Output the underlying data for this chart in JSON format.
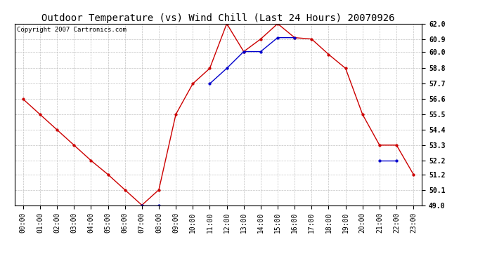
{
  "title": "Outdoor Temperature (vs) Wind Chill (Last 24 Hours) 20070926",
  "copyright": "Copyright 2007 Cartronics.com",
  "hours": [
    "00:00",
    "01:00",
    "02:00",
    "03:00",
    "04:00",
    "05:00",
    "06:00",
    "07:00",
    "08:00",
    "09:00",
    "10:00",
    "11:00",
    "12:00",
    "13:00",
    "14:00",
    "15:00",
    "16:00",
    "17:00",
    "18:00",
    "19:00",
    "20:00",
    "21:00",
    "22:00",
    "23:00"
  ],
  "outdoor_temp": [
    56.6,
    55.5,
    54.4,
    53.3,
    52.2,
    51.2,
    50.1,
    49.0,
    50.1,
    55.5,
    57.7,
    58.8,
    62.0,
    60.0,
    60.9,
    62.0,
    61.0,
    60.9,
    59.8,
    58.8,
    55.5,
    53.3,
    53.3,
    51.2
  ],
  "wind_chill": [
    null,
    null,
    null,
    null,
    null,
    null,
    null,
    49.0,
    49.0,
    null,
    null,
    57.7,
    58.8,
    60.0,
    60.0,
    61.0,
    61.0,
    null,
    null,
    null,
    null,
    52.2,
    52.2,
    null
  ],
  "temp_color": "#cc0000",
  "wind_color": "#0000cc",
  "bg_color": "#ffffff",
  "grid_color": "#bbbbbb",
  "ylim": [
    49.0,
    62.0
  ],
  "yticks": [
    49.0,
    50.1,
    51.2,
    52.2,
    53.3,
    54.4,
    55.5,
    56.6,
    57.7,
    58.8,
    60.0,
    60.9,
    62.0
  ],
  "ytick_labels": [
    "49.0",
    "50.1",
    "51.2",
    "52.2",
    "53.3",
    "54.4",
    "55.5",
    "56.6",
    "57.7",
    "58.8",
    "60.0",
    "60.9",
    "62.0"
  ],
  "title_fontsize": 10,
  "copyright_fontsize": 6.5,
  "tick_fontsize": 7,
  "marker_size": 2.5,
  "line_width": 1.0
}
